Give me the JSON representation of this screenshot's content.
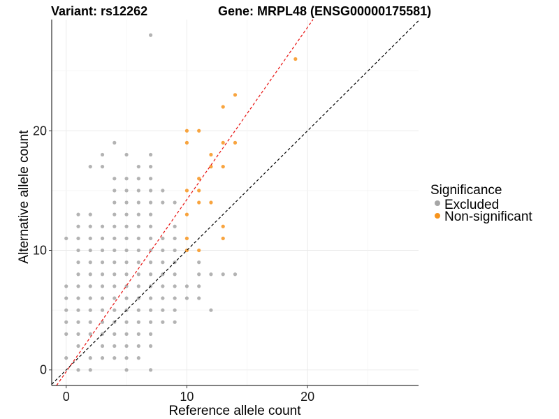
{
  "chart_data": {
    "type": "scatter",
    "title_left": "Variant: rs12262",
    "title_right": "Gene: MRPL48 (ENSG00000175581)",
    "xlabel": "Reference allele count",
    "ylabel": "Alternative allele count",
    "xlim": [
      -1.2,
      29.2
    ],
    "ylim": [
      -1.3,
      29.3
    ],
    "x_ticks": [
      0,
      10,
      20
    ],
    "y_ticks": [
      0,
      10,
      20
    ],
    "grid": true,
    "legend": {
      "title": "Significance",
      "placement": "right",
      "entries": [
        {
          "label": "Excluded",
          "color": "#a6a6a6"
        },
        {
          "label": "Non-significant",
          "color": "#f7941d"
        }
      ]
    },
    "reference_lines": [
      {
        "slope": 1,
        "intercept": 0,
        "color": "#000000",
        "style": "dashed"
      },
      {
        "slope": 1.44,
        "intercept": -0.15,
        "color": "#e8110f",
        "style": "dashed"
      }
    ],
    "series": [
      {
        "name": "Excluded",
        "color": "#a6a6a6",
        "points": [
          [
            0,
            1
          ],
          [
            0,
            3
          ],
          [
            0,
            4
          ],
          [
            0,
            5
          ],
          [
            0,
            6
          ],
          [
            0,
            7
          ],
          [
            0,
            11
          ],
          [
            1,
            0
          ],
          [
            1,
            2
          ],
          [
            1,
            3
          ],
          [
            1,
            4
          ],
          [
            1,
            5
          ],
          [
            1,
            6
          ],
          [
            1,
            7
          ],
          [
            1,
            8
          ],
          [
            1,
            9
          ],
          [
            1,
            10
          ],
          [
            1,
            11
          ],
          [
            1,
            12
          ],
          [
            1,
            13
          ],
          [
            2,
            0
          ],
          [
            2,
            1
          ],
          [
            2,
            3
          ],
          [
            2,
            4
          ],
          [
            2,
            5
          ],
          [
            2,
            6
          ],
          [
            2,
            7
          ],
          [
            2,
            8
          ],
          [
            2,
            9
          ],
          [
            2,
            10
          ],
          [
            2,
            11
          ],
          [
            2,
            12
          ],
          [
            2,
            13
          ],
          [
            2,
            17
          ],
          [
            3,
            1
          ],
          [
            3,
            2
          ],
          [
            3,
            3
          ],
          [
            3,
            4
          ],
          [
            3,
            5
          ],
          [
            3,
            6
          ],
          [
            3,
            7
          ],
          [
            3,
            8
          ],
          [
            3,
            9
          ],
          [
            3,
            10
          ],
          [
            3,
            11
          ],
          [
            3,
            12
          ],
          [
            3,
            17
          ],
          [
            3,
            18
          ],
          [
            4,
            1
          ],
          [
            4,
            2
          ],
          [
            4,
            3
          ],
          [
            4,
            4
          ],
          [
            4,
            5
          ],
          [
            4,
            6
          ],
          [
            4,
            7
          ],
          [
            4,
            8
          ],
          [
            4,
            9
          ],
          [
            4,
            10
          ],
          [
            4,
            11
          ],
          [
            4,
            12
          ],
          [
            4,
            13
          ],
          [
            4,
            14
          ],
          [
            4,
            15
          ],
          [
            4,
            16
          ],
          [
            4,
            19
          ],
          [
            5,
            0
          ],
          [
            5,
            1
          ],
          [
            5,
            2
          ],
          [
            5,
            3
          ],
          [
            5,
            4
          ],
          [
            5,
            5
          ],
          [
            5,
            6
          ],
          [
            5,
            7
          ],
          [
            5,
            8
          ],
          [
            5,
            9
          ],
          [
            5,
            10
          ],
          [
            5,
            11
          ],
          [
            5,
            12
          ],
          [
            5,
            13
          ],
          [
            5,
            14
          ],
          [
            5,
            15
          ],
          [
            5,
            16
          ],
          [
            5,
            18
          ],
          [
            6,
            1
          ],
          [
            6,
            2
          ],
          [
            6,
            3
          ],
          [
            6,
            4
          ],
          [
            6,
            5
          ],
          [
            6,
            6
          ],
          [
            6,
            7
          ],
          [
            6,
            8
          ],
          [
            6,
            9
          ],
          [
            6,
            10
          ],
          [
            6,
            11
          ],
          [
            6,
            12
          ],
          [
            6,
            13
          ],
          [
            6,
            14
          ],
          [
            6,
            15
          ],
          [
            6,
            16
          ],
          [
            6,
            17
          ],
          [
            7,
            0
          ],
          [
            7,
            2
          ],
          [
            7,
            3
          ],
          [
            7,
            4
          ],
          [
            7,
            5
          ],
          [
            7,
            6
          ],
          [
            7,
            7
          ],
          [
            7,
            8
          ],
          [
            7,
            9
          ],
          [
            7,
            10
          ],
          [
            7,
            11
          ],
          [
            7,
            12
          ],
          [
            7,
            13
          ],
          [
            7,
            14
          ],
          [
            7,
            15
          ],
          [
            7,
            16
          ],
          [
            7,
            17
          ],
          [
            7,
            18
          ],
          [
            7,
            28
          ],
          [
            8,
            4
          ],
          [
            8,
            5
          ],
          [
            8,
            6
          ],
          [
            8,
            7
          ],
          [
            8,
            8
          ],
          [
            8,
            9
          ],
          [
            8,
            10
          ],
          [
            8,
            11
          ],
          [
            8,
            14
          ],
          [
            8,
            15
          ],
          [
            9,
            4
          ],
          [
            9,
            5
          ],
          [
            9,
            6
          ],
          [
            9,
            7
          ],
          [
            9,
            8
          ],
          [
            9,
            9
          ],
          [
            9,
            10
          ],
          [
            9,
            11
          ],
          [
            9,
            12
          ],
          [
            9,
            14
          ],
          [
            10,
            6
          ],
          [
            10,
            7
          ],
          [
            11,
            6
          ],
          [
            11,
            7
          ],
          [
            11,
            8
          ],
          [
            11,
            9
          ],
          [
            12,
            5
          ],
          [
            12,
            8
          ],
          [
            13,
            8
          ],
          [
            14,
            8
          ]
        ]
      },
      {
        "name": "Non-significant",
        "color": "#f7941d",
        "points": [
          [
            10,
            10
          ],
          [
            10,
            11
          ],
          [
            10,
            13
          ],
          [
            10,
            15
          ],
          [
            10,
            19
          ],
          [
            10,
            20
          ],
          [
            11,
            10
          ],
          [
            11,
            14
          ],
          [
            11,
            15
          ],
          [
            11,
            16
          ],
          [
            11,
            20
          ],
          [
            12,
            14
          ],
          [
            12,
            17
          ],
          [
            12,
            18
          ],
          [
            13,
            11
          ],
          [
            13,
            12
          ],
          [
            13,
            17
          ],
          [
            13,
            19
          ],
          [
            13,
            22
          ],
          [
            14,
            19
          ],
          [
            14,
            23
          ],
          [
            19,
            26
          ]
        ]
      }
    ]
  }
}
